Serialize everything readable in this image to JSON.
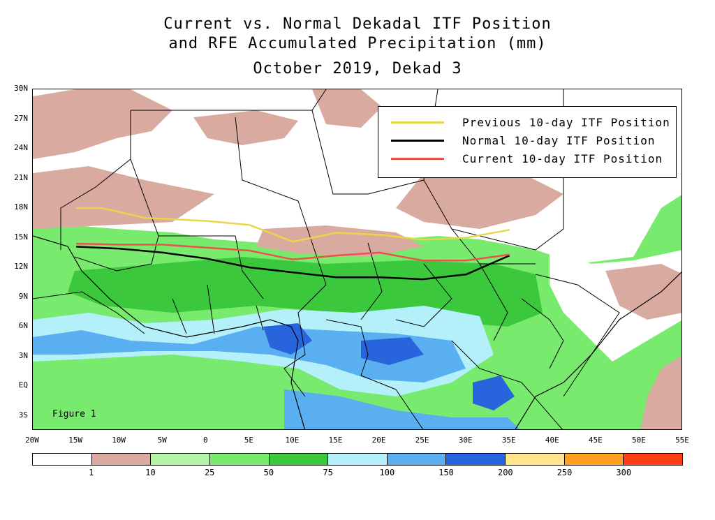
{
  "title": {
    "line1": "Current vs. Normal Dekadal ITF Position",
    "line2": "and RFE Accumulated Precipitation (mm)",
    "line3": "October 2019, Dekad 3"
  },
  "map": {
    "lon_range": [
      -20,
      55
    ],
    "lat_range": [
      -4.5,
      30
    ],
    "y_ticks": [
      "30N",
      "27N",
      "24N",
      "21N",
      "18N",
      "15N",
      "12N",
      "9N",
      "6N",
      "3N",
      "EQ",
      "3S"
    ],
    "x_ticks": [
      "20W",
      "15W",
      "10W",
      "5W",
      "0",
      "5E",
      "10E",
      "15E",
      "20E",
      "25E",
      "30E",
      "35E",
      "40E",
      "45E",
      "50E",
      "55E"
    ],
    "figure_label": "Figure 1"
  },
  "legend": {
    "items": [
      {
        "label": "Previous 10-day ITF Position",
        "color": "#e8d64a"
      },
      {
        "label": "Normal 10-day ITF Position",
        "color": "#000000"
      },
      {
        "label": "Current 10-day ITF Position",
        "color": "#e8534a"
      }
    ]
  },
  "itf_lines": {
    "previous": [
      [
        -15,
        18
      ],
      [
        -12,
        18
      ],
      [
        -7,
        17
      ],
      [
        0,
        16.7
      ],
      [
        5,
        16.3
      ],
      [
        10,
        14.6
      ],
      [
        15,
        15.5
      ],
      [
        20,
        15.3
      ],
      [
        25,
        14.8
      ],
      [
        30,
        15
      ],
      [
        35,
        15.8
      ]
    ],
    "normal": [
      [
        -15,
        14.1
      ],
      [
        -10,
        13.9
      ],
      [
        -5,
        13.5
      ],
      [
        0,
        12.9
      ],
      [
        5,
        12
      ],
      [
        10,
        11.5
      ],
      [
        15,
        11
      ],
      [
        20,
        11
      ],
      [
        25,
        10.8
      ],
      [
        30,
        11.3
      ],
      [
        35,
        13.2
      ]
    ],
    "current": [
      [
        -15,
        14.4
      ],
      [
        -10,
        14.3
      ],
      [
        -5,
        14.3
      ],
      [
        0,
        14
      ],
      [
        5,
        13.7
      ],
      [
        10,
        12.8
      ],
      [
        15,
        13.2
      ],
      [
        20,
        13.5
      ],
      [
        25,
        12.7
      ],
      [
        30,
        12.7
      ],
      [
        35,
        13.3
      ]
    ]
  },
  "colorbar": {
    "colors": [
      "#ffffff",
      "#d9aaa0",
      "#b4f5a5",
      "#78ea6e",
      "#3cc83c",
      "#b4f0fa",
      "#5aaff0",
      "#2864dc",
      "#ffe68c",
      "#ffa01e",
      "#ff3c14"
    ],
    "labels": [
      "1",
      "10",
      "25",
      "50",
      "75",
      "100",
      "150",
      "200",
      "250",
      "300"
    ]
  }
}
